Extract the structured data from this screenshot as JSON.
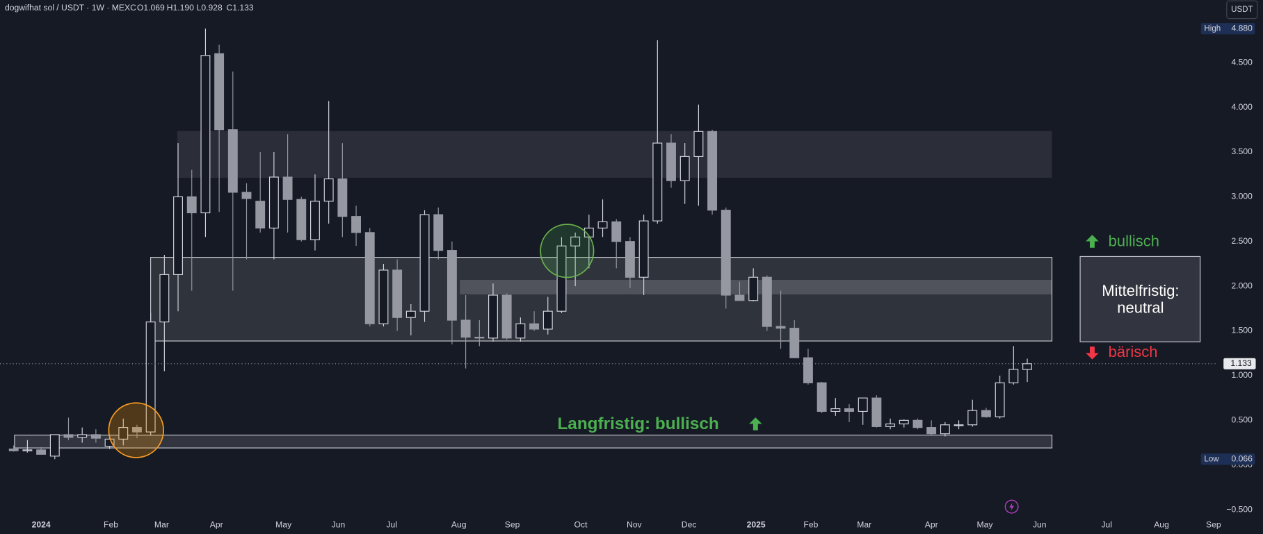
{
  "chart_data": {
    "type": "candlestick",
    "header": {
      "symbol": "dogwifhat sol / USDT · 1W · MEXC",
      "open": "O1.069",
      "high": "H1.190",
      "low": "L0.928",
      "close": "C1.133"
    },
    "currency_button": "USDT",
    "x": [
      0,
      1,
      2,
      3,
      4,
      5,
      6,
      7,
      8,
      9,
      10,
      11,
      12,
      13,
      14,
      15,
      16,
      17,
      18,
      19,
      20,
      21,
      22,
      23,
      24,
      25,
      26,
      27,
      28,
      29,
      30,
      31,
      32,
      33,
      34,
      35,
      36,
      37,
      38,
      39,
      40,
      41,
      42,
      43,
      44,
      45,
      46,
      47,
      48,
      49,
      50,
      51,
      52,
      53,
      54,
      55,
      56,
      57,
      58,
      59,
      60,
      61,
      62,
      63,
      64,
      65,
      66,
      67,
      68,
      69,
      70,
      71,
      72,
      73,
      74
    ],
    "open": [
      0.18,
      0.16,
      0.17,
      0.1,
      0.34,
      0.31,
      0.34,
      0.21,
      0.29,
      0.42,
      0.37,
      1.6,
      2.13,
      3.0,
      2.82,
      4.6,
      3.75,
      3.05,
      2.95,
      2.65,
      3.22,
      2.97,
      2.52,
      2.95,
      3.2,
      2.78,
      2.6,
      1.58,
      2.18,
      1.65,
      1.72,
      2.8,
      2.4,
      1.62,
      1.43,
      1.42,
      1.9,
      1.42,
      1.58,
      1.52,
      1.72,
      2.45,
      2.55,
      2.65,
      2.72,
      2.5,
      2.1,
      2.73,
      3.6,
      3.18,
      3.45,
      3.73,
      2.85,
      1.9,
      1.84,
      2.1,
      1.55,
      1.53,
      1.2,
      0.92,
      0.6,
      0.63,
      0.6,
      0.75,
      0.43,
      0.46,
      0.5,
      0.42,
      0.35,
      0.45,
      0.45,
      0.61,
      0.54,
      0.92,
      1.069
    ],
    "high": [
      0.22,
      0.28,
      0.2,
      0.34,
      0.53,
      0.42,
      0.4,
      0.32,
      0.52,
      0.45,
      1.7,
      2.35,
      3.6,
      3.3,
      4.88,
      4.7,
      4.4,
      3.15,
      3.5,
      3.5,
      3.7,
      3.0,
      3.25,
      4.07,
      3.6,
      2.9,
      2.65,
      2.25,
      2.3,
      1.8,
      2.85,
      2.88,
      2.5,
      1.9,
      1.62,
      2.03,
      1.92,
      1.65,
      1.72,
      1.88,
      2.55,
      2.6,
      2.8,
      2.97,
      2.75,
      2.55,
      2.8,
      4.75,
      3.7,
      3.6,
      4.03,
      3.75,
      2.88,
      2.05,
      2.2,
      2.12,
      1.95,
      1.62,
      1.3,
      0.93,
      0.75,
      0.68,
      0.75,
      0.78,
      0.52,
      0.51,
      0.52,
      0.5,
      0.48,
      0.5,
      0.73,
      0.64,
      1.0,
      1.33,
      1.19
    ],
    "low": [
      0.15,
      0.14,
      0.12,
      0.066,
      0.28,
      0.25,
      0.25,
      0.18,
      0.22,
      0.3,
      0.33,
      1.05,
      1.72,
      1.95,
      2.55,
      2.83,
      1.95,
      2.3,
      2.6,
      2.3,
      2.6,
      2.5,
      2.4,
      2.7,
      2.55,
      2.45,
      1.55,
      1.55,
      1.5,
      1.45,
      1.6,
      2.3,
      1.35,
      1.08,
      1.33,
      1.38,
      1.4,
      1.38,
      1.5,
      1.46,
      1.7,
      2.0,
      2.2,
      2.55,
      2.2,
      1.98,
      1.9,
      2.7,
      3.1,
      2.92,
      2.9,
      2.8,
      1.75,
      1.85,
      1.83,
      1.5,
      1.3,
      1.2,
      0.9,
      0.58,
      0.55,
      0.48,
      0.45,
      0.42,
      0.4,
      0.42,
      0.4,
      0.34,
      0.32,
      0.4,
      0.43,
      0.53,
      0.52,
      0.9,
      0.928
    ],
    "close": [
      0.16,
      0.17,
      0.12,
      0.34,
      0.31,
      0.34,
      0.3,
      0.29,
      0.42,
      0.37,
      1.6,
      2.13,
      3.0,
      2.82,
      4.58,
      3.75,
      3.05,
      2.98,
      2.65,
      3.22,
      2.97,
      2.52,
      2.95,
      3.2,
      2.78,
      2.6,
      1.58,
      2.18,
      1.65,
      1.72,
      2.8,
      2.4,
      1.62,
      1.43,
      1.42,
      1.9,
      1.42,
      1.58,
      1.52,
      1.72,
      2.45,
      2.55,
      2.65,
      2.72,
      2.5,
      2.1,
      2.73,
      3.6,
      3.18,
      3.45,
      3.73,
      2.85,
      1.9,
      1.84,
      2.1,
      1.55,
      1.53,
      1.2,
      0.92,
      0.6,
      0.63,
      0.6,
      0.75,
      0.43,
      0.46,
      0.5,
      0.42,
      0.35,
      0.45,
      0.45,
      0.61,
      0.54,
      0.92,
      1.07,
      1.133
    ],
    "up_color": "#d1d4dc",
    "down_color": "#9598a1",
    "xlim": [
      -1,
      87.8
    ],
    "xticks": [
      {
        "value": 2,
        "label": "2024"
      },
      {
        "value": 7.1,
        "label": "Feb"
      },
      {
        "value": 10.8,
        "label": "Mar"
      },
      {
        "value": 14.8,
        "label": "Apr"
      },
      {
        "value": 19.7,
        "label": "May"
      },
      {
        "value": 23.7,
        "label": "Jun"
      },
      {
        "value": 27.6,
        "label": "Jul"
      },
      {
        "value": 32.5,
        "label": "Aug"
      },
      {
        "value": 36.4,
        "label": "Sep"
      },
      {
        "value": 41.4,
        "label": "Oct"
      },
      {
        "value": 45.3,
        "label": "Nov"
      },
      {
        "value": 49.3,
        "label": "Dec"
      },
      {
        "value": 54.2,
        "label": "2025"
      },
      {
        "value": 58.2,
        "label": "Feb"
      },
      {
        "value": 62.1,
        "label": "Mar"
      },
      {
        "value": 67,
        "label": "Apr"
      },
      {
        "value": 70.9,
        "label": "May"
      },
      {
        "value": 74.9,
        "label": "Jun"
      },
      {
        "value": 79.8,
        "label": "Jul"
      },
      {
        "value": 83.8,
        "label": "Aug"
      },
      {
        "value": 87.6,
        "label": "Sep"
      }
    ],
    "ylim": [
      -0.6,
      5.2
    ],
    "yticks": [
      {
        "value": 4.5,
        "label": "4.500"
      },
      {
        "value": 4,
        "label": "4.000"
      },
      {
        "value": 3.5,
        "label": "3.500"
      },
      {
        "value": 3,
        "label": "3.000"
      },
      {
        "value": 2.5,
        "label": "2.500"
      },
      {
        "value": 2,
        "label": "2.000"
      },
      {
        "value": 1.5,
        "label": "1.500"
      },
      {
        "value": 1,
        "label": "1.000"
      },
      {
        "value": 0.5,
        "label": "0.500"
      },
      {
        "value": 0,
        "label": "0.000"
      },
      {
        "value": -0.5,
        "label": "−0.500"
      }
    ],
    "grid": false,
    "high_marker": {
      "name": "High",
      "value": 4.88,
      "label": "4.880"
    },
    "low_marker": {
      "name": "Low",
      "value": 0.066,
      "label": "0.066"
    },
    "last_price": {
      "value": 1.133,
      "label": "1.133"
    },
    "annotations": {
      "bullish": "bullisch",
      "bearish": "bärisch",
      "mid_term_1": "Mittelfristig:",
      "mid_term_2": "neutral",
      "long_term": "Langfristig: bullisch"
    }
  }
}
